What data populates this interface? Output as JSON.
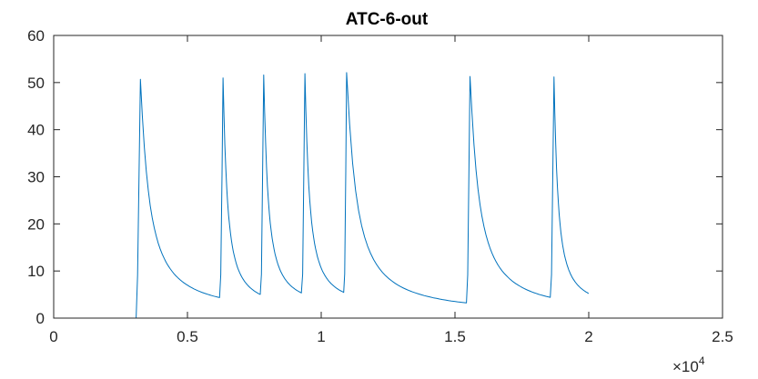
{
  "chart_data": {
    "type": "line",
    "title": "ATC-6-out",
    "xlabel": "",
    "ylabel": "",
    "xlim": [
      0,
      25000
    ],
    "ylim": [
      0,
      60
    ],
    "x_ticks": [
      0,
      5000,
      10000,
      15000,
      20000,
      25000
    ],
    "x_tick_labels": [
      "0",
      "0.5",
      "1",
      "1.5",
      "2",
      "2.5"
    ],
    "x_exponent_label": "×10",
    "x_exponent_power": "4",
    "y_ticks": [
      0,
      10,
      20,
      30,
      40,
      50,
      60
    ],
    "y_tick_labels": [
      "0",
      "10",
      "20",
      "30",
      "40",
      "50",
      "60"
    ],
    "grid": false,
    "line_color": "#0072bd",
    "series": [
      {
        "x_start": 0,
        "x_end": 20000,
        "baseline": 0,
        "spikes": [
          {
            "onset": 3080,
            "peak_x": 3240,
            "peak": 50.7,
            "end_x": 6200,
            "end_value": 0.7
          },
          {
            "onset": 6200,
            "peak_x": 6330,
            "peak": 51.0,
            "end_x": 7720,
            "end_value": 1.4
          },
          {
            "onset": 7720,
            "peak_x": 7850,
            "peak": 51.6,
            "end_x": 9260,
            "end_value": 1.7
          },
          {
            "onset": 9260,
            "peak_x": 9390,
            "peak": 51.9,
            "end_x": 10840,
            "end_value": 1.8
          },
          {
            "onset": 10840,
            "peak_x": 10950,
            "peak": 52.1,
            "end_x": 15430,
            "end_value": 0.6
          },
          {
            "onset": 15430,
            "peak_x": 15560,
            "peak": 51.3,
            "end_x": 18560,
            "end_value": 0.7
          },
          {
            "onset": 18560,
            "peak_x": 18700,
            "peak": 51.2,
            "end_x": 20000,
            "end_value": 1.6
          }
        ]
      }
    ]
  }
}
